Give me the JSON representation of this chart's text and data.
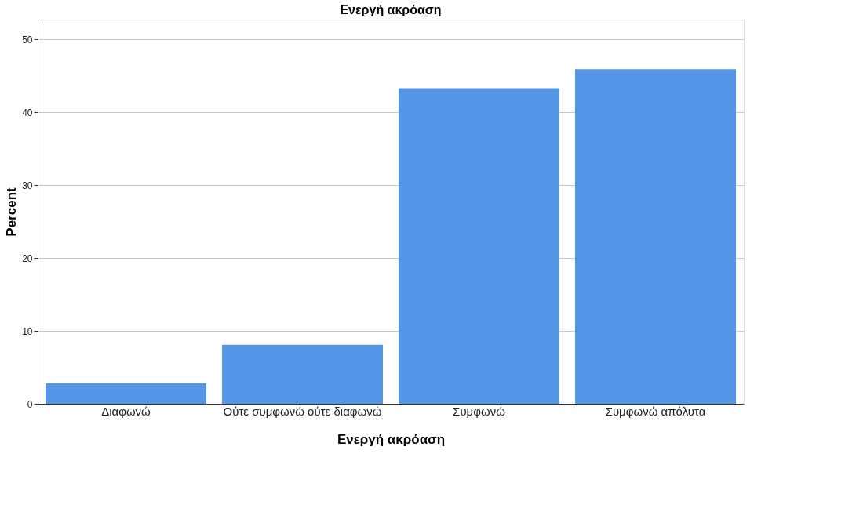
{
  "chart_data": {
    "type": "bar",
    "title": "Ενεργή ακρόαση",
    "xlabel": "Ενεργή ακρόαση",
    "ylabel": "Percent",
    "categories": [
      "Διαφωνώ",
      "Ούτε συμφωνώ ούτε διαφωνώ",
      "Συμφωνώ",
      "Συμφωνώ απόλυτα"
    ],
    "values": [
      2.8,
      8.1,
      43.3,
      45.9
    ],
    "color": "#5596e6",
    "ylim": [
      0,
      52.7
    ],
    "yticks": [
      0,
      10,
      20,
      30,
      40,
      50
    ],
    "grid": "y"
  }
}
